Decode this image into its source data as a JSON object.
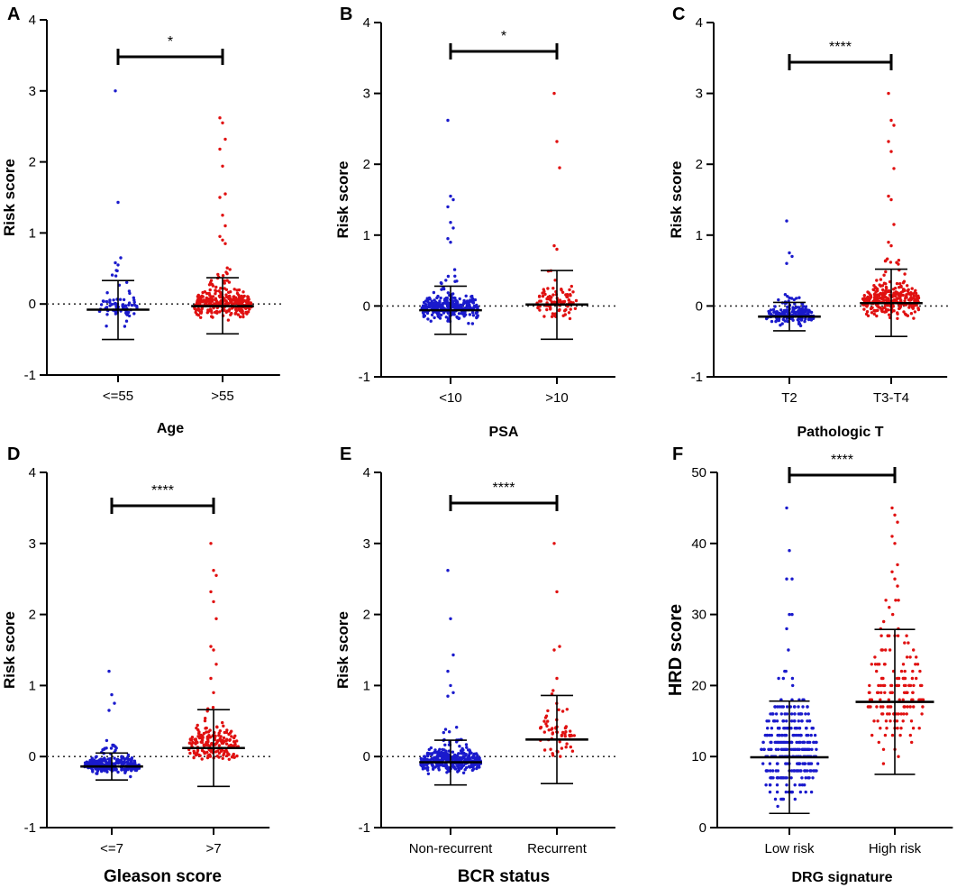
{
  "colors": {
    "group1": "#1a1acc",
    "group2": "#e01010",
    "axis": "#000000",
    "reference_line": "#333333"
  },
  "chart_data": [
    {
      "type": "scatter",
      "panel_label": "A",
      "ylabel": "Risk score",
      "xlabel": "Age",
      "ylim": [
        -1,
        4
      ],
      "yticks": [
        "-1",
        "0",
        "1",
        "2",
        "3",
        "4"
      ],
      "categories": [
        "<=55",
        ">55"
      ],
      "reference_line": 0,
      "significance": "*",
      "series": [
        {
          "name": "<=55",
          "mean": -0.08,
          "sd_low": -0.5,
          "sd_high": 0.33,
          "n": 75,
          "spread": 0.32,
          "outliers": [
            3.0,
            1.43,
            0.65,
            0.58,
            0.55
          ]
        },
        {
          "name": ">55",
          "mean": -0.03,
          "sd_low": -0.42,
          "sd_high": 0.37,
          "n": 300,
          "spread": 0.28,
          "outliers": [
            2.62,
            2.55,
            2.32,
            2.18,
            1.94,
            1.55,
            1.5,
            1.25,
            1.1,
            0.95,
            0.9,
            0.85
          ]
        }
      ]
    },
    {
      "type": "scatter",
      "panel_label": "B",
      "ylabel": "Risk score",
      "xlabel": "PSA",
      "ylim": [
        -1,
        4
      ],
      "yticks": [
        "-1",
        "0",
        "1",
        "2",
        "3",
        "4"
      ],
      "categories": [
        "<10",
        ">10"
      ],
      "reference_line": 0,
      "significance": "*",
      "series": [
        {
          "name": "<10",
          "mean": -0.06,
          "sd_low": -0.4,
          "sd_high": 0.28,
          "n": 300,
          "spread": 0.28,
          "outliers": [
            2.62,
            1.55,
            1.5,
            1.4,
            1.18,
            1.1,
            0.95,
            0.9
          ]
        },
        {
          "name": ">10",
          "mean": 0.02,
          "sd_low": -0.47,
          "sd_high": 0.5,
          "n": 90,
          "spread": 0.36,
          "outliers": [
            3.0,
            2.32,
            1.95,
            0.85,
            0.8
          ]
        }
      ]
    },
    {
      "type": "scatter",
      "panel_label": "C",
      "ylabel": "Risk score",
      "xlabel": "Pathologic T",
      "ylim": [
        -1,
        4
      ],
      "yticks": [
        "-1",
        "0",
        "1",
        "2",
        "3",
        "4"
      ],
      "categories": [
        "T2",
        "T3-T4"
      ],
      "reference_line": 0,
      "significance": "****",
      "series": [
        {
          "name": "T2",
          "mean": -0.15,
          "sd_low": -0.35,
          "sd_high": 0.05,
          "n": 170,
          "spread": 0.2,
          "outliers": [
            1.2,
            0.75,
            0.7,
            0.6
          ]
        },
        {
          "name": "T3-T4",
          "mean": 0.04,
          "sd_low": -0.43,
          "sd_high": 0.52,
          "n": 290,
          "spread": 0.34,
          "outliers": [
            3.0,
            2.62,
            2.55,
            2.32,
            2.18,
            1.94,
            1.55,
            1.5,
            1.15,
            0.9,
            0.85
          ]
        }
      ]
    },
    {
      "type": "scatter",
      "panel_label": "D",
      "ylabel": "Risk score",
      "xlabel": "Gleason score",
      "ylim": [
        -1,
        4
      ],
      "yticks": [
        "-1",
        "0",
        "1",
        "2",
        "3",
        "4"
      ],
      "categories": [
        "<=7",
        ">7"
      ],
      "reference_line": 0,
      "significance": "****",
      "series": [
        {
          "name": "<=7",
          "mean": -0.14,
          "sd_low": -0.33,
          "sd_high": 0.05,
          "n": 260,
          "spread": 0.18,
          "outliers": [
            1.2,
            0.87,
            0.75,
            0.65
          ]
        },
        {
          "name": ">7",
          "mean": 0.12,
          "sd_low": -0.42,
          "sd_high": 0.66,
          "n": 180,
          "spread": 0.38,
          "outliers": [
            3.0,
            2.62,
            2.55,
            2.32,
            2.18,
            1.94,
            1.55,
            1.5,
            1.3,
            1.1,
            0.9
          ]
        }
      ]
    },
    {
      "type": "scatter",
      "panel_label": "E",
      "ylabel": "Risk score",
      "xlabel": "BCR status",
      "ylim": [
        -1,
        4
      ],
      "yticks": [
        "-1",
        "0",
        "1",
        "2",
        "3",
        "4"
      ],
      "categories": [
        "Non-recurrent",
        "Recurrent"
      ],
      "reference_line": 0,
      "significance": "****",
      "series": [
        {
          "name": "Non-recurrent",
          "mean": -0.08,
          "sd_low": -0.4,
          "sd_high": 0.23,
          "n": 330,
          "spread": 0.24,
          "outliers": [
            2.62,
            1.94,
            1.43,
            1.2,
            1.0,
            0.9,
            0.85
          ]
        },
        {
          "name": "Recurrent",
          "mean": 0.24,
          "sd_low": -0.38,
          "sd_high": 0.86,
          "n": 60,
          "spread": 0.45,
          "outliers": [
            3.0,
            2.32,
            1.55,
            1.5,
            1.1
          ]
        }
      ]
    },
    {
      "type": "scatter",
      "panel_label": "F",
      "ylabel": "HRD score",
      "xlabel": "DRG signature",
      "ylim": [
        0,
        50
      ],
      "yticks": [
        "0",
        "10",
        "20",
        "30",
        "40",
        "50"
      ],
      "categories": [
        "Low risk",
        "High risk"
      ],
      "reference_line": null,
      "significance": "****",
      "series": [
        {
          "name": "Low risk",
          "mean": 9.9,
          "sd_low": 2.0,
          "sd_high": 17.8,
          "n": 320,
          "spread": 8.0,
          "outliers": [
            45,
            39,
            35,
            35,
            30,
            30,
            28
          ]
        },
        {
          "name": "High risk",
          "mean": 17.7,
          "sd_low": 7.5,
          "sd_high": 27.9,
          "n": 150,
          "spread": 9.5,
          "outliers": [
            45,
            44,
            43,
            41,
            40,
            37,
            36,
            35,
            34
          ]
        }
      ]
    }
  ]
}
